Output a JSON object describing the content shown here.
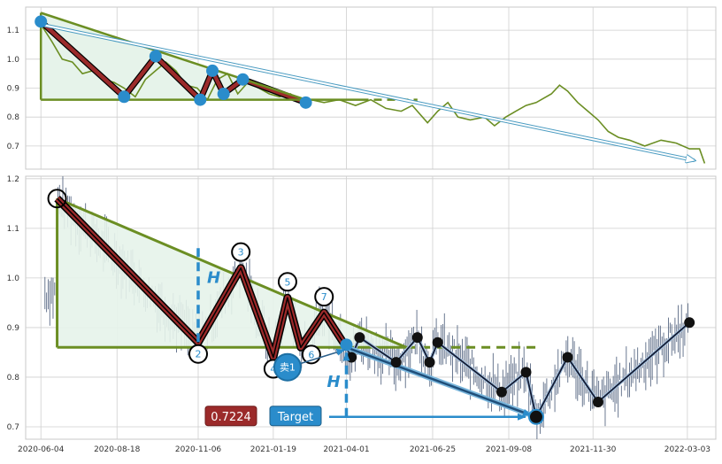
{
  "chart_data": [
    {
      "type": "line",
      "name": "overview",
      "ylim": [
        0.62,
        1.18
      ],
      "yticks": [
        "0.7",
        "0.8",
        "0.9",
        "1.0",
        "1.1"
      ],
      "ytick_values": [
        0.7,
        0.8,
        0.9,
        1.0,
        1.1
      ],
      "price_series": [
        {
          "x": "2020-06-04",
          "y": 1.12
        },
        {
          "x": "2020-06-15",
          "y": 1.06
        },
        {
          "x": "2020-06-25",
          "y": 1.0
        },
        {
          "x": "2020-07-05",
          "y": 0.99
        },
        {
          "x": "2020-07-15",
          "y": 0.95
        },
        {
          "x": "2020-07-25",
          "y": 0.96
        },
        {
          "x": "2020-08-05",
          "y": 0.93
        },
        {
          "x": "2020-08-15",
          "y": 0.92
        },
        {
          "x": "2020-08-25",
          "y": 0.9
        },
        {
          "x": "2020-09-05",
          "y": 0.87
        },
        {
          "x": "2020-09-15",
          "y": 0.93
        },
        {
          "x": "2020-09-25",
          "y": 0.96
        },
        {
          "x": "2020-10-05",
          "y": 0.99
        },
        {
          "x": "2020-10-15",
          "y": 0.96
        },
        {
          "x": "2020-10-25",
          "y": 0.91
        },
        {
          "x": "2020-11-05",
          "y": 0.9
        },
        {
          "x": "2020-11-15",
          "y": 0.86
        },
        {
          "x": "2020-11-25",
          "y": 0.93
        },
        {
          "x": "2020-12-05",
          "y": 0.95
        },
        {
          "x": "2020-12-15",
          "y": 0.88
        },
        {
          "x": "2020-12-25",
          "y": 0.92
        },
        {
          "x": "2021-01-05",
          "y": 0.9
        },
        {
          "x": "2021-01-15",
          "y": 0.88
        },
        {
          "x": "2021-01-25",
          "y": 0.87
        },
        {
          "x": "2021-02-05",
          "y": 0.88
        },
        {
          "x": "2021-02-15",
          "y": 0.85
        },
        {
          "x": "2021-02-25",
          "y": 0.86
        },
        {
          "x": "2021-03-10",
          "y": 0.85
        },
        {
          "x": "2021-03-25",
          "y": 0.86
        },
        {
          "x": "2021-04-10",
          "y": 0.84
        },
        {
          "x": "2021-04-25",
          "y": 0.86
        },
        {
          "x": "2021-05-10",
          "y": 0.83
        },
        {
          "x": "2021-05-25",
          "y": 0.82
        },
        {
          "x": "2021-06-05",
          "y": 0.84
        },
        {
          "x": "2021-06-20",
          "y": 0.78
        },
        {
          "x": "2021-06-30",
          "y": 0.82
        },
        {
          "x": "2021-07-10",
          "y": 0.85
        },
        {
          "x": "2021-07-20",
          "y": 0.8
        },
        {
          "x": "2021-08-01",
          "y": 0.79
        },
        {
          "x": "2021-08-15",
          "y": 0.8
        },
        {
          "x": "2021-08-25",
          "y": 0.77
        },
        {
          "x": "2021-09-05",
          "y": 0.8
        },
        {
          "x": "2021-09-15",
          "y": 0.82
        },
        {
          "x": "2021-09-25",
          "y": 0.84
        },
        {
          "x": "2021-10-05",
          "y": 0.85
        },
        {
          "x": "2021-10-20",
          "y": 0.88
        },
        {
          "x": "2021-10-28",
          "y": 0.91
        },
        {
          "x": "2021-11-05",
          "y": 0.89
        },
        {
          "x": "2021-11-15",
          "y": 0.85
        },
        {
          "x": "2021-11-25",
          "y": 0.82
        },
        {
          "x": "2021-12-05",
          "y": 0.79
        },
        {
          "x": "2021-12-15",
          "y": 0.75
        },
        {
          "x": "2021-12-25",
          "y": 0.73
        },
        {
          "x": "2022-01-05",
          "y": 0.72
        },
        {
          "x": "2022-01-20",
          "y": 0.7
        },
        {
          "x": "2022-02-05",
          "y": 0.72
        },
        {
          "x": "2022-02-20",
          "y": 0.71
        },
        {
          "x": "2022-03-05",
          "y": 0.69
        },
        {
          "x": "2022-03-15",
          "y": 0.69
        },
        {
          "x": "2022-03-20",
          "y": 0.64
        }
      ],
      "pattern_points": [
        {
          "x": "2020-06-04",
          "y": 1.13
        },
        {
          "x": "2020-08-25",
          "y": 0.87
        },
        {
          "x": "2020-09-25",
          "y": 1.01
        },
        {
          "x": "2020-11-08",
          "y": 0.86
        },
        {
          "x": "2020-11-20",
          "y": 0.96
        },
        {
          "x": "2020-12-01",
          "y": 0.88
        },
        {
          "x": "2020-12-20",
          "y": 0.93
        },
        {
          "x": "2021-02-20",
          "y": 0.85
        }
      ],
      "resistance_line": [
        {
          "x": "2020-06-04",
          "y": 1.16
        },
        {
          "x": "2021-02-20",
          "y": 0.86
        }
      ],
      "support_line": [
        {
          "x": "2020-06-04",
          "y": 0.86
        },
        {
          "x": "2021-04-15",
          "y": 0.86
        }
      ],
      "support_extension": [
        {
          "x": "2021-04-15",
          "y": 0.86
        },
        {
          "x": "2021-06-10",
          "y": 0.86
        }
      ],
      "forecast_arrow": [
        {
          "x": "2020-06-04",
          "y": 1.12
        },
        {
          "x": "2022-03-10",
          "y": 0.65
        }
      ]
    },
    {
      "type": "line",
      "name": "detail",
      "ylim": [
        0.675,
        1.205
      ],
      "yticks": [
        "0.7",
        "0.8",
        "0.9",
        "1.0",
        "1.1",
        "1.2"
      ],
      "ytick_values": [
        0.7,
        0.8,
        0.9,
        1.0,
        1.1,
        1.2
      ],
      "xticks": [
        "2020-06-04",
        "2020-08-18",
        "2020-11-06",
        "2021-01-19",
        "2021-04-01",
        "2021-06-25",
        "2021-09-08",
        "2021-11-30",
        "2022-03-03"
      ],
      "pattern_points": [
        {
          "label": "",
          "x": "2020-06-20",
          "y": 1.16
        },
        {
          "label": "2",
          "x": "2020-11-06",
          "y": 0.87
        },
        {
          "label": "3",
          "x": "2020-12-18",
          "y": 1.02
        },
        {
          "label": "4",
          "x": "2021-01-19",
          "y": 0.84
        },
        {
          "label": "5",
          "x": "2021-02-02",
          "y": 0.96
        },
        {
          "label": "6",
          "x": "2021-02-15",
          "y": 0.86
        },
        {
          "label": "7",
          "x": "2021-03-10",
          "y": 0.93
        },
        {
          "label": "",
          "x": "2021-04-01",
          "y": 0.86
        }
      ],
      "resistance_line": [
        {
          "x": "2020-06-20",
          "y": 1.16
        },
        {
          "x": "2021-05-30",
          "y": 0.86
        }
      ],
      "support_line": [
        {
          "x": "2020-06-20",
          "y": 0.86
        },
        {
          "x": "2021-05-30",
          "y": 0.86
        }
      ],
      "support_extension": [
        {
          "x": "2021-05-30",
          "y": 0.86
        },
        {
          "x": "2021-10-05",
          "y": 0.86
        }
      ],
      "pattern_height_marker": {
        "x": "2020-11-06",
        "y0": 0.87,
        "y1": 1.06,
        "label": "H"
      },
      "target_height_marker": {
        "x": "2021-04-01",
        "y0": 0.72,
        "y1": 0.86,
        "label": "H"
      },
      "entry_marker": {
        "x": "2021-02-02",
        "y": 0.82,
        "label": "卖1"
      },
      "projection_line": [
        {
          "x": "2021-04-01",
          "y": 0.86
        },
        {
          "x": "2021-10-05",
          "y": 0.72
        }
      ],
      "future_swings": [
        {
          "x": "2021-04-06",
          "y": 0.84
        },
        {
          "x": "2021-04-14",
          "y": 0.88
        },
        {
          "x": "2021-05-20",
          "y": 0.83
        },
        {
          "x": "2021-06-10",
          "y": 0.88
        },
        {
          "x": "2021-06-22",
          "y": 0.83
        },
        {
          "x": "2021-06-30",
          "y": 0.87
        },
        {
          "x": "2021-09-01",
          "y": 0.77
        },
        {
          "x": "2021-09-25",
          "y": 0.81
        },
        {
          "x": "2021-10-05",
          "y": 0.72
        },
        {
          "x": "2021-11-05",
          "y": 0.84
        },
        {
          "x": "2021-12-05",
          "y": 0.75
        },
        {
          "x": "2022-03-05",
          "y": 0.91
        }
      ],
      "target_price": {
        "value": "0.7224",
        "label": "Target",
        "y": 0.72
      }
    }
  ],
  "colors": {
    "price_line": "#6b8e23",
    "pattern_band": "#9b2a2a",
    "pattern_fill": "#e6f3ea",
    "marker_blue": "#2a8ccb",
    "target_badge": "#9b2a2a",
    "target_label": "#2a8ccb",
    "axis_text": "#333333",
    "candles": "#5a6a85"
  }
}
